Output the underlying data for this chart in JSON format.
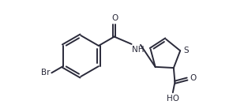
{
  "line_color": "#2a2a3a",
  "bg_color": "#ffffff",
  "line_width": 1.4,
  "font_size": 7.5,
  "fig_width": 3.14,
  "fig_height": 1.42,
  "xlim": [
    -0.2,
    4.5
  ],
  "ylim": [
    -0.5,
    2.2
  ]
}
